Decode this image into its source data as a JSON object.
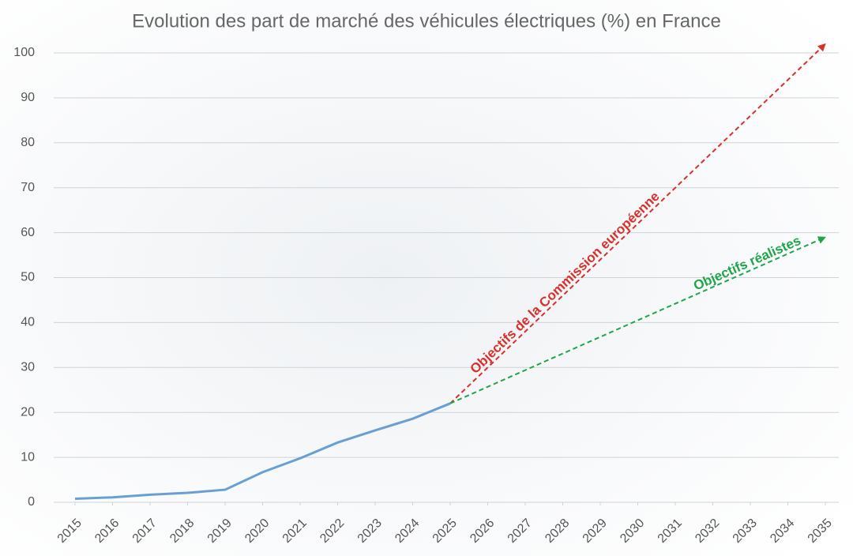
{
  "chart_data": {
    "type": "line",
    "title": "Evolution des part de marché des véhicules électriques (%) en France",
    "xlim": [
      2015,
      2035
    ],
    "xticks": [
      2015,
      2016,
      2017,
      2018,
      2019,
      2020,
      2021,
      2022,
      2023,
      2024,
      2025,
      2026,
      2027,
      2028,
      2029,
      2030,
      2031,
      2032,
      2033,
      2034,
      2035
    ],
    "ylim": [
      0,
      100
    ],
    "yticks": [
      0,
      10,
      20,
      30,
      40,
      50,
      60,
      70,
      80,
      90,
      100
    ],
    "grid": true,
    "series": [
      {
        "color": "#6a9fd4",
        "dashed": false,
        "x": [
          2015,
          2016,
          2017,
          2018,
          2019,
          2020,
          2021,
          2022,
          2023,
          2024,
          2025
        ],
        "values": [
          0.8,
          1.1,
          1.7,
          2.1,
          2.8,
          6.7,
          9.8,
          13.3,
          16.0,
          18.6,
          22
        ]
      },
      {
        "name": "Objectifs de la Commission européenne",
        "color": "#d9302c",
        "dashed": true,
        "x": [
          2025,
          2035
        ],
        "values": [
          22,
          102
        ]
      },
      {
        "name": "Objectifs réalistes",
        "color": "#1fa64a",
        "dashed": true,
        "x": [
          2025,
          2035
        ],
        "values": [
          22,
          59
        ]
      }
    ]
  }
}
